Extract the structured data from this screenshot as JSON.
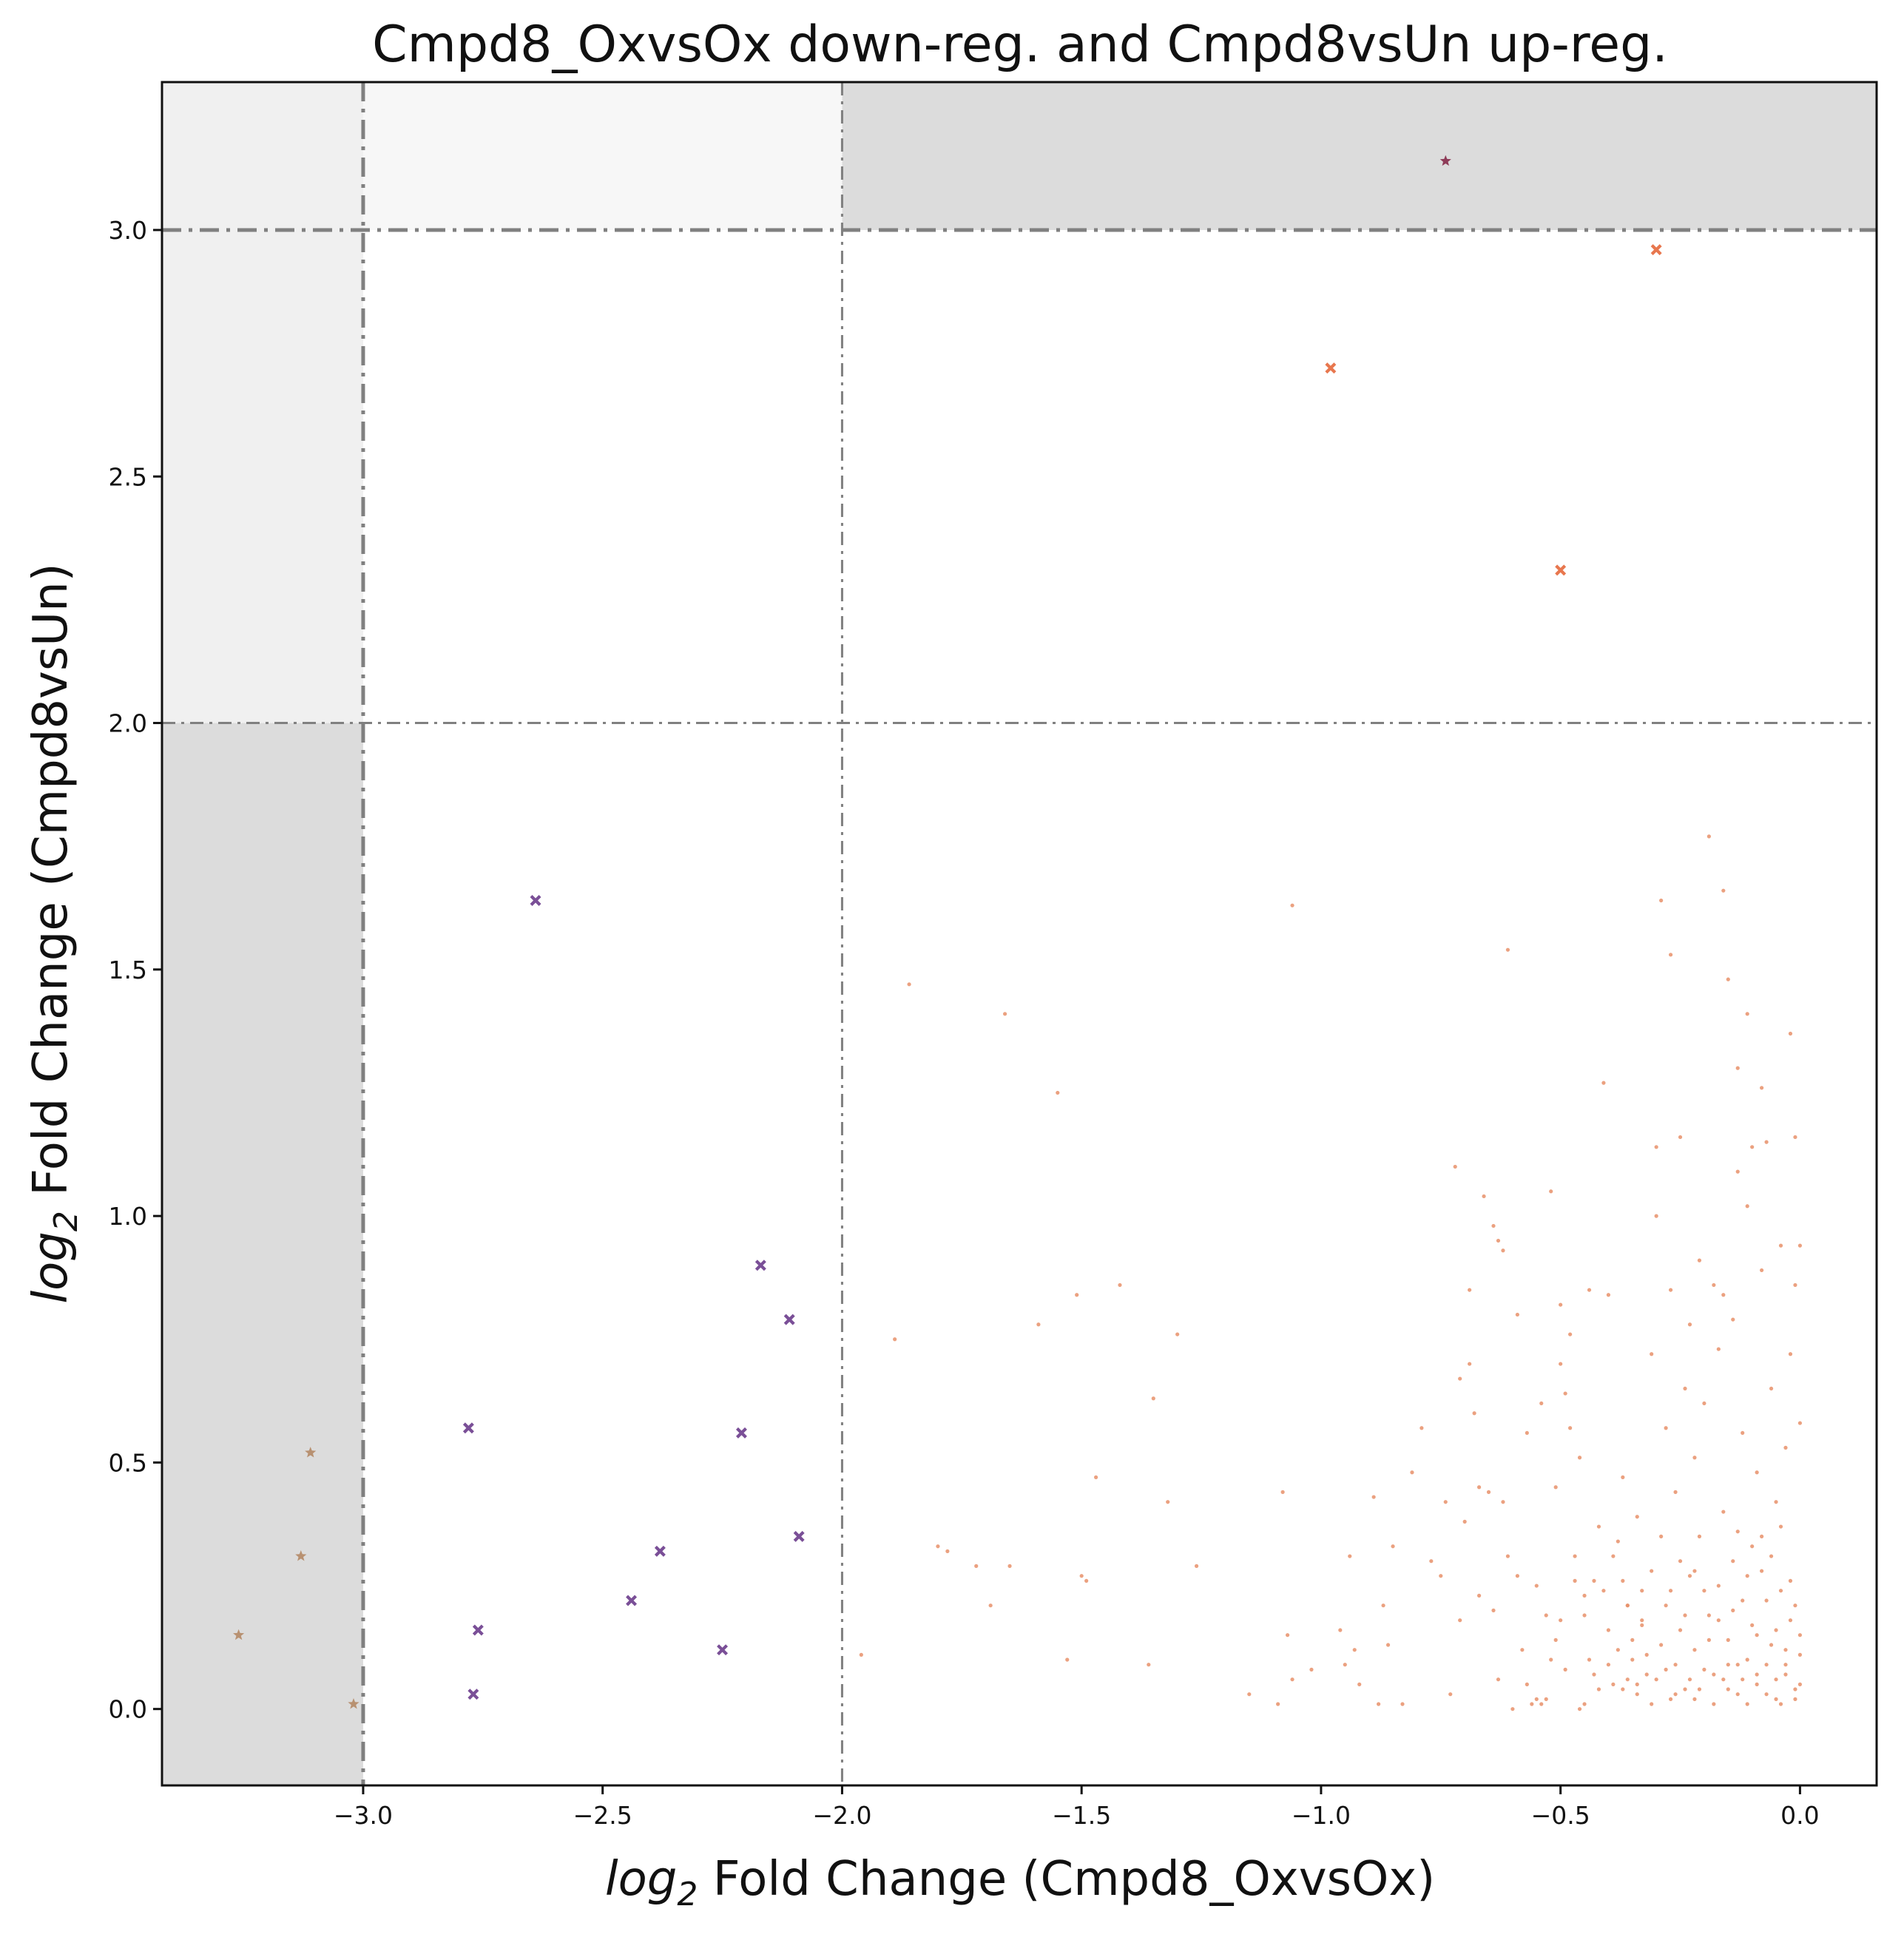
{
  "chart_data": {
    "type": "scatter",
    "title": "Cmpd8_OxvsOx down-reg. and Cmpd8vsUn up-reg.",
    "xlabel": {
      "prefix": "log",
      "sub": "2",
      "text": " Fold Change (Cmpd8_OxvsOx)"
    },
    "ylabel": {
      "prefix": "log",
      "sub": "2",
      "text": " Fold Change (Cmpd8vsUn)"
    },
    "xlim": [
      -3.42,
      0.16
    ],
    "ylim": [
      -0.155,
      3.3
    ],
    "x_ticks": [
      -3.0,
      -2.5,
      -2.0,
      -1.5,
      -1.0,
      -0.5,
      0.0
    ],
    "x_tick_labels": [
      "−3.0",
      "−2.5",
      "−2.0",
      "−1.5",
      "−1.0",
      "−0.5",
      "0.0"
    ],
    "y_ticks": [
      0.0,
      0.5,
      1.0,
      1.5,
      2.0,
      2.5,
      3.0
    ],
    "y_tick_labels": [
      "0.0",
      "0.5",
      "1.0",
      "1.5",
      "2.0",
      "2.5",
      "3.0"
    ],
    "grid": false,
    "thresholds": {
      "vertical": [
        {
          "x": -3.0,
          "style": "heavy"
        },
        {
          "x": -2.0,
          "style": "light"
        }
      ],
      "horizontal": [
        {
          "y": 3.0,
          "style": "heavy"
        },
        {
          "y": 2.0,
          "style": "light"
        }
      ]
    },
    "shaded_regions": [
      {
        "x": [
          -3.42,
          -3.0
        ],
        "y": [
          -0.155,
          2.0
        ],
        "color": "#dcdcdc"
      },
      {
        "x": [
          -2.0,
          0.16
        ],
        "y": [
          3.0,
          3.3
        ],
        "color": "#dcdcdc"
      },
      {
        "x": [
          -3.42,
          -3.0
        ],
        "y": [
          2.0,
          3.3
        ],
        "color": "#f0f0f0"
      },
      {
        "x": [
          -3.0,
          -2.0
        ],
        "y": [
          3.0,
          3.3
        ],
        "color": "#f7f7f7"
      }
    ],
    "series": [
      {
        "marker": "star",
        "color": "#8e3b58",
        "points": [
          [
            -0.74,
            3.14
          ]
        ]
      },
      {
        "marker": "x",
        "color": "#e8774e",
        "points": [
          [
            -0.3,
            2.96
          ],
          [
            -0.98,
            2.72
          ],
          [
            -0.5,
            2.31
          ]
        ]
      },
      {
        "marker": "x",
        "color": "#7a4f97",
        "points": [
          [
            -2.64,
            1.64
          ],
          [
            -2.17,
            0.9
          ],
          [
            -2.11,
            0.79
          ],
          [
            -2.78,
            0.57
          ],
          [
            -2.21,
            0.56
          ],
          [
            -2.38,
            0.32
          ],
          [
            -2.09,
            0.35
          ],
          [
            -2.44,
            0.22
          ],
          [
            -2.76,
            0.16
          ],
          [
            -2.25,
            0.12
          ],
          [
            -2.77,
            0.03
          ]
        ]
      },
      {
        "marker": "star",
        "color": "#b89171",
        "points": [
          [
            -3.11,
            0.52
          ],
          [
            -3.13,
            0.31
          ],
          [
            -3.26,
            0.15
          ],
          [
            -3.02,
            0.01
          ]
        ]
      },
      {
        "marker": "dot",
        "color": "#e8916a",
        "points": [
          [
            -1.96,
            0.11
          ],
          [
            -1.89,
            0.75
          ],
          [
            -1.86,
            1.47
          ],
          [
            -1.8,
            0.33
          ],
          [
            -1.78,
            0.32
          ],
          [
            -1.72,
            0.29
          ],
          [
            -1.69,
            0.21
          ],
          [
            -1.66,
            1.41
          ],
          [
            -1.65,
            0.29
          ],
          [
            -1.59,
            0.78
          ],
          [
            -1.55,
            1.25
          ],
          [
            -1.53,
            0.1
          ],
          [
            -1.51,
            0.84
          ],
          [
            -1.5,
            0.27
          ],
          [
            -1.49,
            0.26
          ],
          [
            -1.47,
            0.47
          ],
          [
            -1.42,
            0.86
          ],
          [
            -1.36,
            0.09
          ],
          [
            -1.35,
            0.63
          ],
          [
            -1.32,
            0.42
          ],
          [
            -1.3,
            0.76
          ],
          [
            -1.26,
            0.29
          ],
          [
            -1.15,
            0.03
          ],
          [
            -1.09,
            0.01
          ],
          [
            -1.08,
            0.44
          ],
          [
            -1.07,
            0.15
          ],
          [
            -1.06,
            1.63
          ],
          [
            -1.06,
            0.06
          ],
          [
            -1.02,
            0.08
          ],
          [
            -0.96,
            0.16
          ],
          [
            -0.95,
            0.09
          ],
          [
            -0.94,
            0.31
          ],
          [
            -0.93,
            0.12
          ],
          [
            -0.92,
            0.05
          ],
          [
            -0.89,
            0.43
          ],
          [
            -0.88,
            0.01
          ],
          [
            -0.87,
            0.21
          ],
          [
            -0.86,
            0.13
          ],
          [
            -0.85,
            0.33
          ],
          [
            -0.83,
            0.01
          ],
          [
            -0.81,
            0.48
          ],
          [
            -0.79,
            0.57
          ],
          [
            -0.77,
            0.3
          ],
          [
            -0.75,
            0.27
          ],
          [
            -0.74,
            0.42
          ],
          [
            -0.73,
            0.03
          ],
          [
            -0.72,
            1.1
          ],
          [
            -0.71,
            0.67
          ],
          [
            -0.71,
            0.18
          ],
          [
            -0.7,
            0.38
          ],
          [
            -0.69,
            0.85
          ],
          [
            -0.69,
            0.7
          ],
          [
            -0.68,
            0.6
          ],
          [
            -0.67,
            0.45
          ],
          [
            -0.67,
            0.23
          ],
          [
            -0.66,
            1.04
          ],
          [
            -0.65,
            0.44
          ],
          [
            -0.64,
            0.2
          ],
          [
            -0.63,
            0.06
          ],
          [
            -0.62,
            0.42
          ],
          [
            -0.61,
            0.31
          ],
          [
            -0.6,
            0.0
          ],
          [
            -0.59,
            0.27
          ],
          [
            -0.58,
            0.12
          ],
          [
            -0.57,
            0.05
          ],
          [
            -0.56,
            0.01
          ],
          [
            -0.55,
            0.02
          ],
          [
            -0.54,
            0.01
          ],
          [
            -0.53,
            0.02
          ],
          [
            -0.52,
            0.1
          ],
          [
            -0.51,
            0.45
          ],
          [
            -0.5,
            0.18
          ],
          [
            -0.49,
            0.08
          ],
          [
            -0.48,
            0.57
          ],
          [
            -0.47,
            0.31
          ],
          [
            -0.46,
            0.0
          ],
          [
            -0.45,
            0.23
          ],
          [
            -0.44,
            0.1
          ],
          [
            -0.43,
            0.07
          ],
          [
            -0.42,
            0.37
          ],
          [
            -0.41,
            0.24
          ],
          [
            -0.4,
            0.16
          ],
          [
            -0.39,
            0.05
          ],
          [
            -0.38,
            0.12
          ],
          [
            -0.37,
            0.04
          ],
          [
            -0.36,
            0.21
          ],
          [
            -0.35,
            0.1
          ],
          [
            -0.34,
            0.03
          ],
          [
            -0.33,
            0.17
          ],
          [
            -0.32,
            0.07
          ],
          [
            -0.31,
            0.28
          ],
          [
            -0.3,
            0.06
          ],
          [
            -0.29,
            0.13
          ],
          [
            -0.28,
            0.21
          ],
          [
            -0.27,
            0.02
          ],
          [
            -0.26,
            0.09
          ],
          [
            -0.25,
            0.16
          ],
          [
            -0.24,
            0.04
          ],
          [
            -0.23,
            0.27
          ],
          [
            -0.22,
            0.12
          ],
          [
            -0.21,
            0.35
          ],
          [
            -0.2,
            0.08
          ],
          [
            -0.19,
            0.19
          ],
          [
            -0.18,
            0.01
          ],
          [
            -0.17,
            0.25
          ],
          [
            -0.16,
            0.06
          ],
          [
            -0.15,
            0.14
          ],
          [
            -0.14,
            0.3
          ],
          [
            -0.13,
            0.03
          ],
          [
            -0.12,
            0.22
          ],
          [
            -0.11,
            0.1
          ],
          [
            -0.1,
            0.17
          ],
          [
            -0.09,
            0.05
          ],
          [
            -0.08,
            0.28
          ],
          [
            -0.07,
            0.09
          ],
          [
            -0.06,
            0.13
          ],
          [
            -0.05,
            0.02
          ],
          [
            -0.04,
            0.24
          ],
          [
            -0.03,
            0.07
          ],
          [
            -0.02,
            0.18
          ],
          [
            -0.01,
            0.04
          ],
          [
            -0.0,
            0.11
          ],
          [
            -0.64,
            0.98
          ],
          [
            -0.63,
            0.95
          ],
          [
            -0.62,
            0.93
          ],
          [
            -0.61,
            1.54
          ],
          [
            -0.59,
            0.8
          ],
          [
            -0.57,
            0.56
          ],
          [
            -0.54,
            0.62
          ],
          [
            -0.52,
            1.05
          ],
          [
            -0.5,
            0.82
          ],
          [
            -0.5,
            0.7
          ],
          [
            -0.49,
            0.64
          ],
          [
            -0.48,
            0.76
          ],
          [
            -0.46,
            0.51
          ],
          [
            -0.44,
            0.85
          ],
          [
            -0.41,
            1.27
          ],
          [
            -0.4,
            0.84
          ],
          [
            -0.38,
            0.34
          ],
          [
            -0.37,
            0.47
          ],
          [
            -0.36,
            0.21
          ],
          [
            -0.35,
            0.14
          ],
          [
            -0.34,
            0.39
          ],
          [
            -0.33,
            0.18
          ],
          [
            -0.31,
            0.72
          ],
          [
            -0.3,
            1.14
          ],
          [
            -0.3,
            1.0
          ],
          [
            -0.29,
            1.64
          ],
          [
            -0.28,
            0.57
          ],
          [
            -0.27,
            1.53
          ],
          [
            -0.27,
            0.85
          ],
          [
            -0.26,
            0.44
          ],
          [
            -0.25,
            1.16
          ],
          [
            -0.24,
            0.65
          ],
          [
            -0.23,
            0.78
          ],
          [
            -0.22,
            0.51
          ],
          [
            -0.21,
            0.91
          ],
          [
            -0.2,
            0.62
          ],
          [
            -0.19,
            1.77
          ],
          [
            -0.18,
            0.86
          ],
          [
            -0.17,
            0.73
          ],
          [
            -0.16,
            1.66
          ],
          [
            -0.16,
            0.84
          ],
          [
            -0.15,
            1.48
          ],
          [
            -0.14,
            0.79
          ],
          [
            -0.13,
            1.3
          ],
          [
            -0.13,
            1.09
          ],
          [
            -0.12,
            0.56
          ],
          [
            -0.11,
            1.41
          ],
          [
            -0.11,
            1.02
          ],
          [
            -0.1,
            1.14
          ],
          [
            -0.09,
            0.48
          ],
          [
            -0.08,
            1.26
          ],
          [
            -0.08,
            0.89
          ],
          [
            -0.07,
            1.15
          ],
          [
            -0.06,
            0.65
          ],
          [
            -0.05,
            0.42
          ],
          [
            -0.04,
            0.94
          ],
          [
            -0.03,
            0.53
          ],
          [
            -0.02,
            1.37
          ],
          [
            -0.02,
            0.72
          ],
          [
            -0.01,
            1.16
          ],
          [
            -0.01,
            0.86
          ],
          [
            -0.0,
            0.94
          ],
          [
            -0.0,
            0.58
          ],
          [
            -0.55,
            0.25
          ],
          [
            -0.53,
            0.19
          ],
          [
            -0.51,
            0.14
          ],
          [
            -0.47,
            0.26
          ],
          [
            -0.45,
            0.19
          ],
          [
            -0.43,
            0.26
          ],
          [
            -0.39,
            0.31
          ],
          [
            -0.37,
            0.26
          ],
          [
            -0.33,
            0.24
          ],
          [
            -0.32,
            0.11
          ],
          [
            -0.29,
            0.35
          ],
          [
            -0.27,
            0.24
          ],
          [
            -0.25,
            0.3
          ],
          [
            -0.24,
            0.19
          ],
          [
            -0.22,
            0.28
          ],
          [
            -0.21,
            0.04
          ],
          [
            -0.2,
            0.24
          ],
          [
            -0.19,
            0.14
          ],
          [
            -0.17,
            0.18
          ],
          [
            -0.16,
            0.4
          ],
          [
            -0.15,
            0.09
          ],
          [
            -0.14,
            0.2
          ],
          [
            -0.13,
            0.36
          ],
          [
            -0.12,
            0.06
          ],
          [
            -0.11,
            0.27
          ],
          [
            -0.1,
            0.33
          ],
          [
            -0.09,
            0.15
          ],
          [
            -0.08,
            0.35
          ],
          [
            -0.07,
            0.22
          ],
          [
            -0.06,
            0.31
          ],
          [
            -0.05,
            0.16
          ],
          [
            -0.04,
            0.37
          ],
          [
            -0.03,
            0.12
          ],
          [
            -0.02,
            0.26
          ],
          [
            -0.01,
            0.21
          ],
          [
            -0.0,
            0.15
          ],
          [
            -0.45,
            0.01
          ],
          [
            -0.42,
            0.04
          ],
          [
            -0.4,
            0.09
          ],
          [
            -0.36,
            0.06
          ],
          [
            -0.34,
            0.05
          ],
          [
            -0.31,
            0.01
          ],
          [
            -0.28,
            0.08
          ],
          [
            -0.26,
            0.03
          ],
          [
            -0.23,
            0.06
          ],
          [
            -0.22,
            0.02
          ],
          [
            -0.18,
            0.07
          ],
          [
            -0.15,
            0.04
          ],
          [
            -0.13,
            0.09
          ],
          [
            -0.11,
            0.01
          ],
          [
            -0.09,
            0.07
          ],
          [
            -0.07,
            0.03
          ],
          [
            -0.05,
            0.06
          ],
          [
            -0.04,
            0.01
          ],
          [
            -0.03,
            0.09
          ],
          [
            -0.01,
            0.02
          ],
          [
            -0.0,
            0.05
          ]
        ]
      }
    ]
  }
}
